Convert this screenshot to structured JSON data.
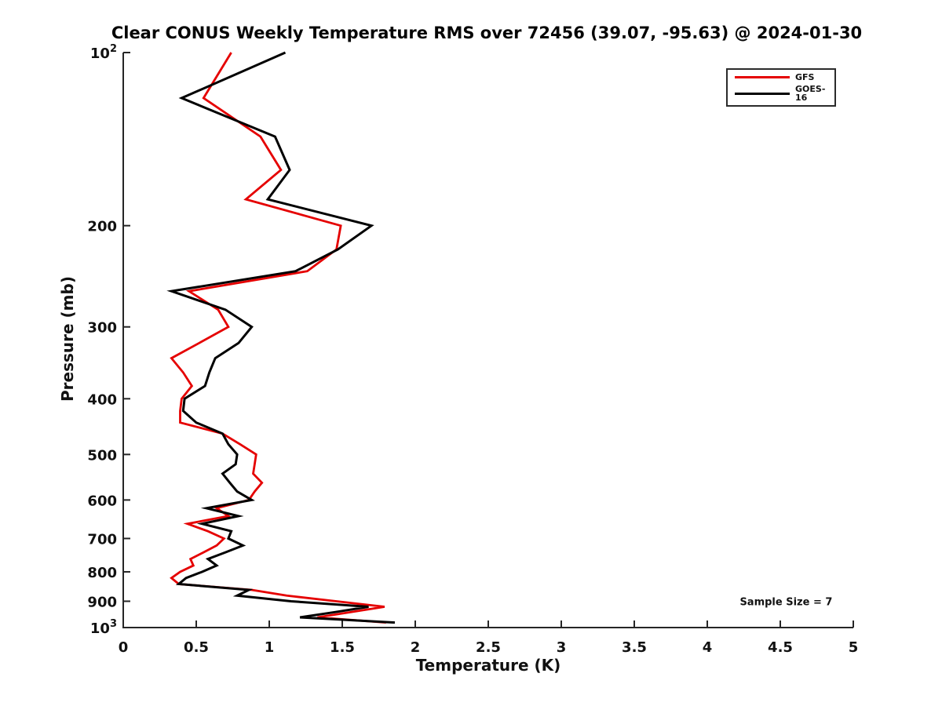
{
  "chart_data": {
    "type": "line",
    "title": "Clear CONUS Weekly Temperature RMS over 72456 (39.07, -95.63) @ 2024-01-30",
    "xlabel": "Temperature (K)",
    "ylabel": "Pressure (mb)",
    "xlim": [
      0,
      5
    ],
    "xticks": [
      0,
      0.5,
      1,
      1.5,
      2,
      2.5,
      3,
      3.5,
      4,
      4.5,
      5
    ],
    "xtick_labels": [
      "0",
      "0.5",
      "1",
      "1.5",
      "2",
      "2.5",
      "3",
      "3.5",
      "4",
      "4.5",
      "5"
    ],
    "yscale": "log",
    "y_inverted": true,
    "ylim": [
      100,
      1000
    ],
    "yticks": [
      100,
      200,
      300,
      400,
      500,
      600,
      700,
      800,
      900,
      1000
    ],
    "ytick_labels": [
      "10^2",
      "200",
      "300",
      "400",
      "500",
      "600",
      "700",
      "800",
      "900",
      "10^3"
    ],
    "grid": false,
    "legend_position": "upper right",
    "pressure_levels_mb": [
      100,
      120,
      140,
      160,
      180,
      200,
      220,
      240,
      260,
      280,
      300,
      320,
      340,
      360,
      380,
      400,
      420,
      440,
      460,
      480,
      500,
      520,
      540,
      560,
      580,
      600,
      620,
      640,
      660,
      680,
      700,
      720,
      740,
      760,
      780,
      800,
      820,
      840,
      860,
      880,
      900,
      920,
      940,
      960,
      980
    ],
    "series": [
      {
        "name": "GFS",
        "color": "#e50000",
        "values": [
          0.74,
          0.55,
          0.94,
          1.08,
          0.84,
          1.49,
          1.46,
          1.26,
          0.45,
          0.65,
          0.72,
          0.52,
          0.33,
          0.41,
          0.47,
          0.4,
          0.39,
          0.39,
          0.68,
          0.8,
          0.91,
          0.9,
          0.89,
          0.95,
          0.9,
          0.86,
          0.64,
          0.72,
          0.44,
          0.58,
          0.69,
          0.64,
          0.55,
          0.46,
          0.48,
          0.39,
          0.33,
          0.38,
          0.88,
          1.12,
          1.46,
          1.79,
          1.56,
          1.33,
          1.8
        ]
      },
      {
        "name": "GOES-16",
        "color": "#000000",
        "values": [
          1.11,
          0.4,
          1.04,
          1.14,
          0.99,
          1.7,
          1.47,
          1.18,
          0.33,
          0.7,
          0.88,
          0.79,
          0.63,
          0.59,
          0.56,
          0.42,
          0.41,
          0.5,
          0.68,
          0.72,
          0.78,
          0.77,
          0.68,
          0.73,
          0.78,
          0.88,
          0.57,
          0.79,
          0.54,
          0.74,
          0.72,
          0.82,
          0.7,
          0.58,
          0.64,
          0.54,
          0.43,
          0.38,
          0.86,
          0.78,
          1.15,
          1.68,
          1.45,
          1.21,
          1.86
        ]
      }
    ],
    "annotation": {
      "text": "Sample Size = 7",
      "x_k": 4.54,
      "pressure_mb": 903
    }
  }
}
